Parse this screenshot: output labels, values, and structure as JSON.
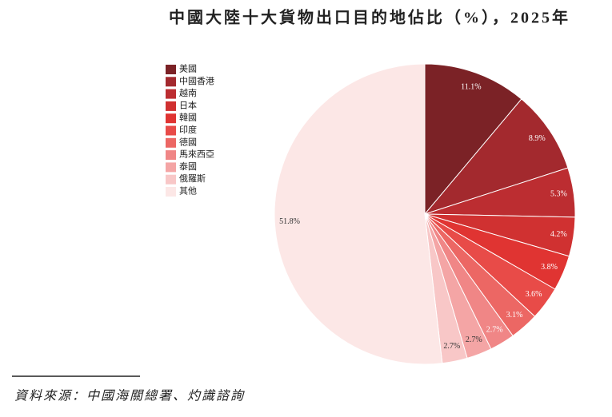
{
  "chart_data": {
    "type": "pie",
    "title": "中國大陸十大貨物出口目的地佔比（%），2025年",
    "categories": [
      "美國",
      "中國香港",
      "越南",
      "日本",
      "韓國",
      "印度",
      "德國",
      "馬來西亞",
      "泰國",
      "俄羅斯",
      "其他"
    ],
    "values": [
      11.1,
      8.9,
      5.3,
      4.2,
      3.8,
      3.6,
      3.1,
      2.7,
      2.7,
      2.7,
      51.8
    ],
    "value_labels": [
      "11.1%",
      "8.9%",
      "5.3%",
      "4.2%",
      "3.8%",
      "3.6%",
      "3.1%",
      "2.7%",
      "2.7%",
      "2.7%",
      "51.8%"
    ],
    "colors": [
      "#7b2226",
      "#a3292e",
      "#bc2d31",
      "#d03131",
      "#e03432",
      "#e84b48",
      "#ec6764",
      "#f08686",
      "#f4a5a5",
      "#f8c7c7",
      "#fce7e6"
    ],
    "legend": "top-left",
    "source": "資料來源：中國海關總署、灼識諮詢"
  }
}
